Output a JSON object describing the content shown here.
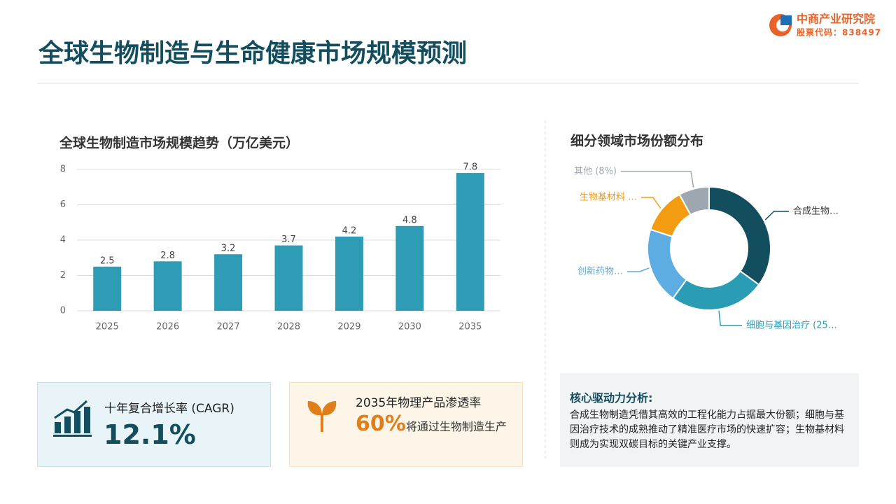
{
  "header": {
    "title": "全球生物制造与生命健康市场规模预测",
    "logo_name": "中商产业研究院",
    "logo_code": "股票代码：838497"
  },
  "chart_data": [
    {
      "type": "bar",
      "title": "全球生物制造市场规模趋势（万亿美元）",
      "categories": [
        "2025",
        "2026",
        "2027",
        "2028",
        "2029",
        "2030",
        "2035"
      ],
      "values": [
        2.5,
        2.8,
        3.2,
        3.7,
        4.2,
        4.8,
        7.8
      ],
      "color": "#2e9cb5",
      "ylim": [
        0,
        8
      ],
      "yticks": [
        0,
        2,
        4,
        6,
        8
      ],
      "grid": true
    },
    {
      "type": "pie",
      "title": "细分领域市场份额分布",
      "categories": [
        "合成生物…",
        "细胞与基因治疗 (25…",
        "创新药物…",
        "生物基材料 …",
        "其他 (8%)"
      ],
      "values": [
        35,
        25,
        20,
        12,
        8
      ],
      "colors": [
        "#134e5e",
        "#2a9db5",
        "#5dade2",
        "#f39c12",
        "#9ea7b0"
      ]
    }
  ],
  "cards": [
    {
      "label": "十年复合增长率 (CAGR)",
      "value": "12.1%"
    },
    {
      "label": "2035年物理产品渗透率",
      "value": "60%",
      "text": "将通过生物制造生产"
    }
  ],
  "analysis": {
    "title": "核心驱动力分析:",
    "text": "合成生物制造凭借其高效的工程化能力占据最大份额；细胞与基因治疗技术的成熟推动了精准医疗市场的快速扩容；生物基材料则成为实现双碳目标的关键产业支撑。"
  }
}
